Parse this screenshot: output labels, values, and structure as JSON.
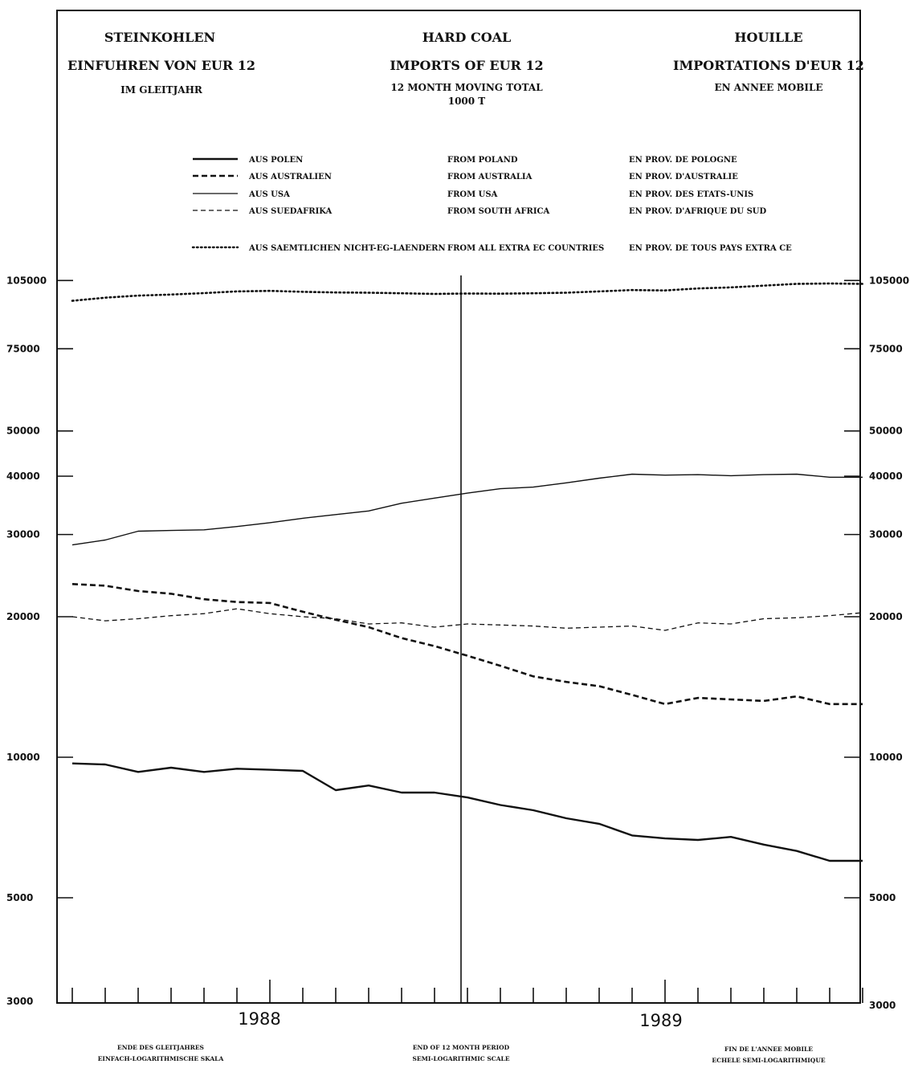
{
  "header": {
    "de": {
      "line1": "STEINKOHLEN",
      "line2": "EINFUHREN VON EUR 12",
      "line3": "IM GLEITJAHR"
    },
    "en": {
      "line1": "HARD COAL",
      "line2": "IMPORTS OF EUR 12",
      "line3": "12 MONTH MOVING TOTAL",
      "line4": "1000 T"
    },
    "fr": {
      "line1": "HOUILLE",
      "line2": "IMPORTATIONS D'EUR 12",
      "line3": "EN ANNEE MOBILE"
    }
  },
  "legend": [
    {
      "de": "AUS POLEN",
      "en": "FROM POLAND",
      "fr": "EN PROV. DE POLOGNE"
    },
    {
      "de": "AUS AUSTRALIEN",
      "en": "FROM AUSTRALIA",
      "fr": "EN PROV. D'AUSTRALIE"
    },
    {
      "de": "AUS USA",
      "en": "FROM USA",
      "fr": "EN PROV. DES ETATS-UNIS"
    },
    {
      "de": "AUS SUEDAFRIKA",
      "en": "FROM SOUTH AFRICA",
      "fr": "EN PROV. D'AFRIQUE DU SUD"
    },
    {
      "de": "AUS SAEMTLICHEN NICHT-EG-LAENDERN",
      "en": "FROM ALL EXTRA EC COUNTRIES",
      "fr": "EN PROV. DE TOUS PAYS EXTRA CE"
    }
  ],
  "footer": {
    "de": {
      "line1": "ENDE DES GLEITJAHRES",
      "line2": "EINFACH-LOGARITHMISCHE SKALA"
    },
    "en": {
      "line1": "END OF 12 MONTH PERIOD",
      "line2": "SEMI-LOGARITHMIC SCALE"
    },
    "fr": {
      "line1": "FIN DE L'ANNEE MOBILE",
      "line2": "ECHELE SEMI-LOGARITHMIQUE"
    }
  },
  "chart_data": {
    "type": "line",
    "y_scale": "log",
    "ylim": [
      3000,
      105000
    ],
    "y_ticks": [
      3000,
      5000,
      10000,
      20000,
      30000,
      40000,
      50000,
      75000,
      105000
    ],
    "year_labels": [
      "1988",
      "1989"
    ],
    "x": [
      "1987-12",
      "1988-01",
      "1988-02",
      "1988-03",
      "1988-04",
      "1988-05",
      "1988-06",
      "1988-07",
      "1988-08",
      "1988-09",
      "1988-10",
      "1988-11",
      "1988-12",
      "1989-01",
      "1989-02",
      "1989-03",
      "1989-04",
      "1989-05",
      "1989-06",
      "1989-07",
      "1989-08",
      "1989-09",
      "1989-10",
      "1989-11",
      "1989-12"
    ],
    "series": [
      {
        "style": "solid-thick",
        "values": [
          9700,
          9650,
          9300,
          9500,
          9300,
          9450,
          9400,
          9350,
          8500,
          8700,
          8400,
          8400,
          8200,
          7900,
          7700,
          7400,
          7200,
          6800,
          6700,
          6650,
          6750,
          6500,
          6300,
          6000,
          6000
        ]
      },
      {
        "style": "dashed-thick",
        "values": [
          23500,
          23300,
          22700,
          22400,
          21800,
          21500,
          21400,
          20500,
          19700,
          19000,
          18000,
          17300,
          16500,
          15700,
          14900,
          14500,
          14200,
          13600,
          13000,
          13400,
          13300,
          13200,
          13500,
          13000,
          13000
        ]
      },
      {
        "style": "solid-thin",
        "values": [
          28500,
          29200,
          30500,
          30600,
          30700,
          31200,
          31800,
          32500,
          33100,
          33700,
          35000,
          35900,
          36800,
          37600,
          37900,
          38700,
          39600,
          40400,
          40200,
          40300,
          40100,
          40300,
          40400,
          39800,
          39800
        ]
      },
      {
        "style": "dashed-thin",
        "values": [
          20000,
          19600,
          19800,
          20100,
          20300,
          20800,
          20300,
          20000,
          19800,
          19300,
          19400,
          19000,
          19300,
          19200,
          19100,
          18900,
          19000,
          19100,
          18700,
          19400,
          19300,
          19800,
          19900,
          20100,
          20400
        ]
      },
      {
        "style": "dotted",
        "values": [
          95000,
          96500,
          97500,
          98000,
          98700,
          99500,
          99800,
          99300,
          99000,
          98900,
          98600,
          98300,
          98500,
          98400,
          98600,
          98900,
          99500,
          100200,
          100000,
          101000,
          101500,
          102400,
          103300,
          103500,
          103300
        ]
      }
    ]
  }
}
